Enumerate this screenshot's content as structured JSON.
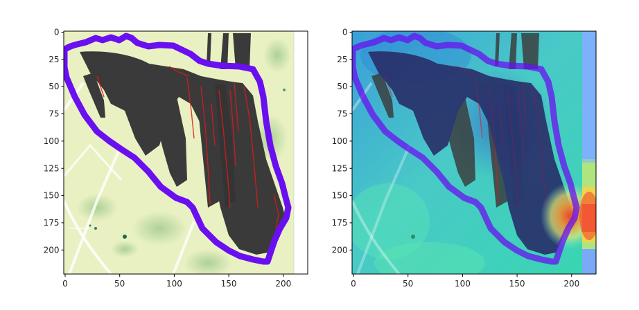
{
  "figure": {
    "panels": [
      {
        "name": "original-image",
        "x_ticks": [
          "0",
          "50",
          "100",
          "150",
          "200"
        ],
        "y_ticks": [
          "0",
          "25",
          "50",
          "75",
          "100",
          "125",
          "150",
          "175",
          "200"
        ],
        "x_range": [
          0,
          225
        ],
        "y_range": [
          0,
          225
        ]
      },
      {
        "name": "heatmap-overlay",
        "x_ticks": [
          "0",
          "50",
          "100",
          "150",
          "200"
        ],
        "y_ticks": [
          "0",
          "25",
          "50",
          "75",
          "100",
          "125",
          "150",
          "175",
          "200"
        ],
        "x_range": [
          0,
          225
        ],
        "y_range": [
          0,
          225
        ]
      }
    ],
    "colors": {
      "outline": "#6a10f0",
      "field_base": "#e8f1c2",
      "dark_mass": "#3c3c3c",
      "red_edges": "#e01010",
      "heat_base": "#3fc7c9",
      "heat_hot": "#f04a2a"
    }
  }
}
